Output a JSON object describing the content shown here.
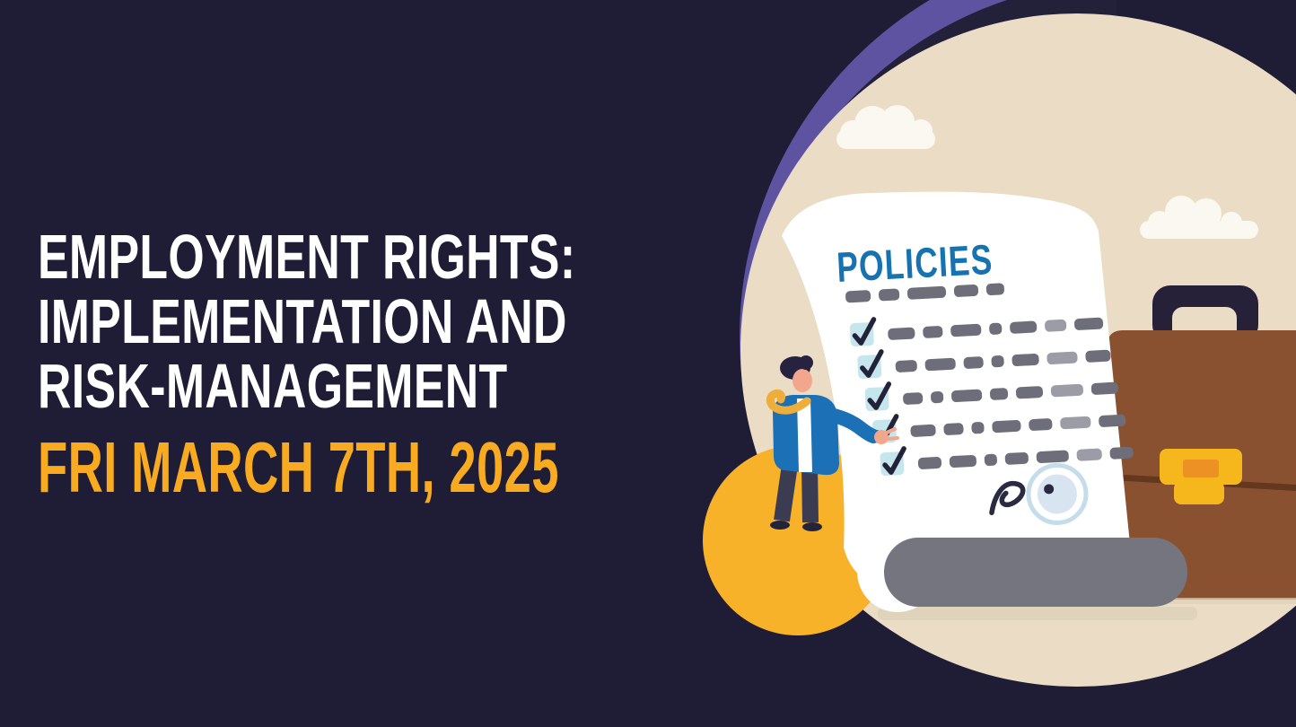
{
  "page": {
    "background_color": "#1F1C35",
    "title_lines": [
      "EMPLOYMENT RIGHTS:",
      "IMPLEMENTATION AND",
      "RISK-MANAGEMENT"
    ],
    "title_color": "#FFFFFF",
    "date": "FRI MARCH 7TH, 2025",
    "date_color": "#F8AB21"
  },
  "illustration": {
    "description": "Businessman presenting a POLICIES checklist scroll with signature and stamp, briefcase and clouds inside a beige circle with purple arc",
    "document_title": "POLICIES",
    "checklist": {
      "header_dashes": [
        28,
        23,
        43,
        27,
        20
      ],
      "rows": [
        {
          "checked": true,
          "dashes": [
            30,
            22,
            34,
            14,
            30,
            24,
            32
          ]
        },
        {
          "checked": true,
          "dashes": [
            24,
            34,
            22,
            14,
            30,
            34,
            28
          ]
        },
        {
          "checked": true,
          "dashes": [
            22,
            14,
            34,
            20,
            30,
            36,
            30
          ]
        },
        {
          "checked": true,
          "dashes": [
            28,
            22,
            14,
            32,
            26,
            34,
            30
          ]
        },
        {
          "checked": true,
          "dashes": [
            26,
            30,
            14,
            26,
            36,
            28,
            26
          ]
        }
      ]
    }
  },
  "colors": {
    "background": "#1F1C35",
    "purple_arc": "#5E53A0",
    "arc_ring": "#232039",
    "circle_beige": "#EBDDC5",
    "cloud": "#FBF8F1",
    "paper": "#FFFFFF",
    "policies_blue": "#1573B2",
    "dash_dark": "#6E6E7A",
    "dash_light": "#9C9CA6",
    "checkbox_bg": "#C5E6EC",
    "checkmark": "#23223B",
    "roll_gray": "#75757F",
    "ground_shadow": "#DFD1B9",
    "briefcase_brown": "#8A5130",
    "briefcase_strap": "#63381F",
    "clasp_yellow": "#F6B71C",
    "clasp_orange": "#EE9125",
    "handle_navy": "#262138",
    "yellow_circle": "#F8B229",
    "skin": "#F2A78D",
    "hair": "#262240",
    "jacket_blue": "#1C70B6",
    "shirt": "#FFFFFF",
    "tie_gold": "#EDAE3C",
    "pants": "#3B3B52",
    "shoes": "#23233C",
    "stamp_ring": "#C5DCEB",
    "stamp_fill": "#D8E5F0",
    "signature": "#2A2A42"
  }
}
